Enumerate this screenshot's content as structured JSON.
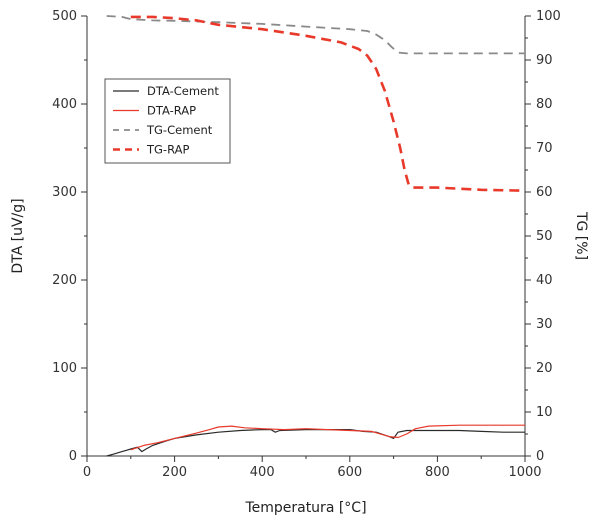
{
  "chart_data": {
    "type": "line",
    "xlabel": "Temperatura [°C]",
    "ylabel_left": "DTA [uV/g]",
    "ylabel_right": "TG [%]",
    "xlim": [
      0,
      1000
    ],
    "ylim_left": [
      0,
      500
    ],
    "ylim_right": [
      0,
      100
    ],
    "x_ticks": [
      0,
      200,
      400,
      600,
      800,
      1000
    ],
    "y_left_ticks": [
      0,
      100,
      200,
      300,
      400,
      500
    ],
    "y_right_ticks": [
      0,
      10,
      20,
      30,
      40,
      50,
      60,
      70,
      80,
      90,
      100
    ],
    "grid": false,
    "legend_position": "top-left",
    "series": [
      {
        "name": "DTA-Cement",
        "axis": "left",
        "color": "#2b2b2b",
        "dash": "solid",
        "points": [
          [
            45,
            0
          ],
          [
            60,
            2
          ],
          [
            80,
            5
          ],
          [
            100,
            8
          ],
          [
            115,
            10
          ],
          [
            125,
            5
          ],
          [
            135,
            8
          ],
          [
            150,
            12
          ],
          [
            180,
            17
          ],
          [
            200,
            20
          ],
          [
            250,
            24
          ],
          [
            300,
            27
          ],
          [
            350,
            29
          ],
          [
            400,
            30
          ],
          [
            420,
            30
          ],
          [
            430,
            27
          ],
          [
            440,
            29
          ],
          [
            500,
            30
          ],
          [
            550,
            30
          ],
          [
            600,
            30
          ],
          [
            630,
            28
          ],
          [
            660,
            27
          ],
          [
            690,
            22
          ],
          [
            700,
            20
          ],
          [
            710,
            27
          ],
          [
            730,
            29
          ],
          [
            760,
            29
          ],
          [
            800,
            29
          ],
          [
            850,
            29
          ],
          [
            900,
            28
          ],
          [
            950,
            27
          ],
          [
            1000,
            27
          ]
        ]
      },
      {
        "name": "DTA-RAP",
        "axis": "left",
        "color": "#e8392a",
        "dash": "solid",
        "points": [
          [
            100,
            7
          ],
          [
            130,
            12
          ],
          [
            160,
            15
          ],
          [
            200,
            20
          ],
          [
            250,
            26
          ],
          [
            280,
            30
          ],
          [
            300,
            33
          ],
          [
            330,
            34
          ],
          [
            360,
            32
          ],
          [
            400,
            31
          ],
          [
            450,
            30
          ],
          [
            500,
            31
          ],
          [
            550,
            30
          ],
          [
            600,
            29
          ],
          [
            650,
            28
          ],
          [
            690,
            22
          ],
          [
            710,
            21
          ],
          [
            730,
            25
          ],
          [
            750,
            31
          ],
          [
            780,
            34
          ],
          [
            850,
            35
          ],
          [
            950,
            35
          ],
          [
            1000,
            35
          ]
        ]
      },
      {
        "name": "TG-Cement",
        "axis": "right",
        "color": "#8a8a8a",
        "dash": "long",
        "points": [
          [
            45,
            100
          ],
          [
            80,
            99.8
          ],
          [
            100,
            99.3
          ],
          [
            150,
            99
          ],
          [
            200,
            98.9
          ],
          [
            300,
            98.6
          ],
          [
            400,
            98.2
          ],
          [
            500,
            97.6
          ],
          [
            600,
            97
          ],
          [
            640,
            96.6
          ],
          [
            660,
            95.8
          ],
          [
            680,
            94.5
          ],
          [
            695,
            93
          ],
          [
            710,
            91.7
          ],
          [
            730,
            91.5
          ],
          [
            800,
            91.5
          ],
          [
            900,
            91.5
          ],
          [
            1000,
            91.5
          ]
        ]
      },
      {
        "name": "TG-RAP",
        "axis": "right",
        "color": "#e8392a",
        "dash": "heavy",
        "points": [
          [
            100,
            99.8
          ],
          [
            150,
            99.8
          ],
          [
            200,
            99.5
          ],
          [
            250,
            99
          ],
          [
            300,
            98
          ],
          [
            400,
            97
          ],
          [
            500,
            95.5
          ],
          [
            580,
            94
          ],
          [
            620,
            92.5
          ],
          [
            640,
            91
          ],
          [
            660,
            88
          ],
          [
            680,
            83
          ],
          [
            700,
            76
          ],
          [
            715,
            70
          ],
          [
            725,
            65
          ],
          [
            735,
            61.5
          ],
          [
            745,
            61
          ],
          [
            800,
            61
          ],
          [
            900,
            60.5
          ],
          [
            1000,
            60.3
          ]
        ]
      }
    ]
  }
}
